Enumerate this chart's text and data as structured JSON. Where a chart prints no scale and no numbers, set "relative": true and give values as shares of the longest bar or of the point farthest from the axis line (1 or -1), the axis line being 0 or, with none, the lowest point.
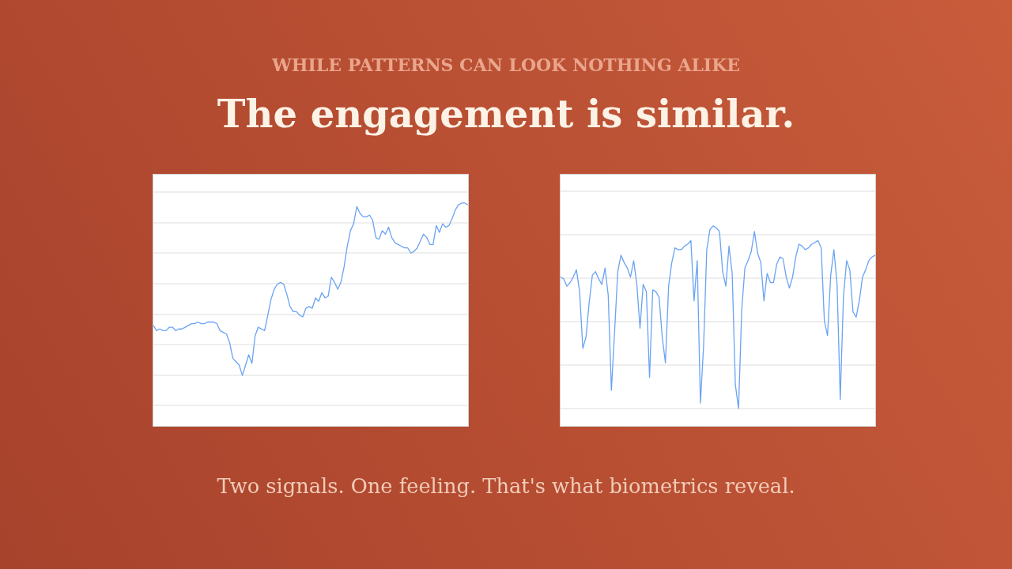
{
  "chart_data": [
    {
      "type": "other",
      "subtitle": "WHILE PATTERNS CAN LOOK NOTHING ALIKE",
      "title": "The engagement is similar.",
      "annotations": [
        "Two signals. One feeling. That's what biometrics reveal."
      ]
    },
    {
      "type": "line",
      "relative": true,
      "grid": "y",
      "line_style": "solid",
      "color": "#6aa3f3",
      "categories": [
        null,
        null,
        null,
        null,
        null,
        null,
        null,
        null,
        null,
        null,
        null,
        null,
        null,
        null,
        null,
        null,
        null,
        null,
        null,
        null,
        null,
        null,
        null,
        null,
        null,
        null,
        null,
        null,
        null,
        null,
        null,
        null,
        null,
        null,
        null,
        null,
        null,
        null,
        null,
        null,
        null,
        null,
        null,
        null,
        null,
        null,
        null,
        null,
        null,
        null,
        null,
        null,
        null,
        null,
        null,
        null,
        null,
        null,
        null,
        null,
        null,
        null,
        null,
        null,
        null,
        null,
        null,
        null,
        null,
        null,
        null,
        null,
        null,
        null,
        null,
        null,
        null,
        null,
        null,
        null,
        null,
        null,
        null,
        null,
        null,
        null,
        null,
        null,
        null,
        null,
        null,
        null,
        null,
        null,
        null,
        null,
        null,
        null,
        null,
        null
      ],
      "values": [
        0.29,
        0.26,
        0.27,
        0.26,
        0.26,
        0.28,
        0.28,
        0.26,
        0.27,
        0.27,
        0.28,
        0.29,
        0.3,
        0.3,
        0.31,
        0.3,
        0.3,
        0.31,
        0.31,
        0.31,
        0.3,
        0.26,
        0.25,
        0.24,
        0.19,
        0.1,
        0.08,
        0.06,
        0,
        0.06,
        0.12,
        0.07,
        0.23,
        0.28,
        0.27,
        0.26,
        0.35,
        0.44,
        0.5,
        0.53,
        0.54,
        0.53,
        0.47,
        0.4,
        0.37,
        0.37,
        0.35,
        0.34,
        0.39,
        0.4,
        0.39,
        0.45,
        0.43,
        0.48,
        0.45,
        0.46,
        0.57,
        0.54,
        0.5,
        0.54,
        0.63,
        0.75,
        0.84,
        0.88,
        0.98,
        0.94,
        0.92,
        0.92,
        0.93,
        0.9,
        0.8,
        0.79,
        0.84,
        0.82,
        0.86,
        0.8,
        0.77,
        0.76,
        0.75,
        0.74,
        0.74,
        0.71,
        0.72,
        0.74,
        0.78,
        0.82,
        0.8,
        0.76,
        0.76,
        0.87,
        0.83,
        0.88,
        0.86,
        0.87,
        0.91,
        0.96,
        0.99,
        1,
        1,
        0.99
      ]
    },
    {
      "type": "line",
      "relative": true,
      "grid": "y",
      "line_style": "solid",
      "color": "#6aa3f3",
      "categories": [
        null,
        null,
        null,
        null,
        null,
        null,
        null,
        null,
        null,
        null,
        null,
        null,
        null,
        null,
        null,
        null,
        null,
        null,
        null,
        null,
        null,
        null,
        null,
        null,
        null,
        null,
        null,
        null,
        null,
        null,
        null,
        null,
        null,
        null,
        null,
        null,
        null,
        null,
        null,
        null,
        null,
        null,
        null,
        null,
        null,
        null,
        null,
        null,
        null,
        null,
        null,
        null,
        null,
        null,
        null,
        null,
        null,
        null,
        null,
        null,
        null,
        null,
        null,
        null,
        null,
        null,
        null,
        null,
        null,
        null,
        null,
        null,
        null,
        null,
        null,
        null,
        null,
        null,
        null,
        null,
        null,
        null,
        null,
        null,
        null,
        null,
        null,
        null,
        null,
        null,
        null,
        null,
        null,
        null,
        null,
        null,
        null,
        null,
        null,
        null
      ],
      "values": [
        0.72,
        0.71,
        0.67,
        0.69,
        0.72,
        0.76,
        0.64,
        0.33,
        0.39,
        0.58,
        0.73,
        0.75,
        0.71,
        0.68,
        0.77,
        0.62,
        0.1,
        0.42,
        0.75,
        0.84,
        0.8,
        0.77,
        0.72,
        0.81,
        0.68,
        0.44,
        0.68,
        0.64,
        0.17,
        0.65,
        0.64,
        0.61,
        0.39,
        0.25,
        0.67,
        0.8,
        0.88,
        0.87,
        0.87,
        0.89,
        0.9,
        0.92,
        0.59,
        0.81,
        0.03,
        0.34,
        0.87,
        0.98,
        1,
        0.99,
        0.97,
        0.75,
        0.67,
        0.89,
        0.74,
        0.13,
        0,
        0.54,
        0.77,
        0.81,
        0.86,
        0.97,
        0.85,
        0.8,
        0.59,
        0.74,
        0.69,
        0.69,
        0.79,
        0.83,
        0.82,
        0.72,
        0.66,
        0.72,
        0.83,
        0.9,
        0.89,
        0.87,
        0.88,
        0.9,
        0.91,
        0.92,
        0.88,
        0.48,
        0.4,
        0.73,
        0.87,
        0.68,
        0.05,
        0.61,
        0.81,
        0.76,
        0.53,
        0.5,
        0.59,
        0.72,
        0.76,
        0.81,
        0.83,
        0.84
      ]
    }
  ]
}
